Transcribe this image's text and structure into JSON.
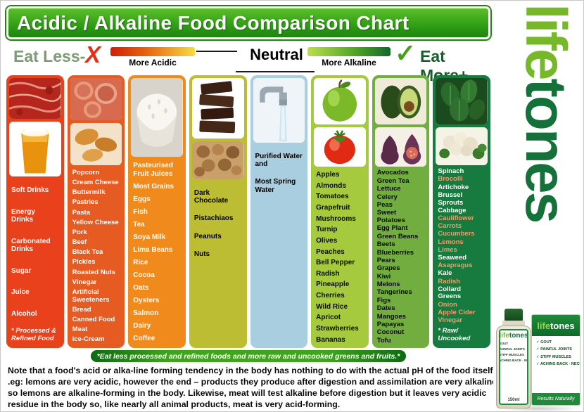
{
  "title": "Acidic / Alkaline Food Comparison Chart",
  "legend": {
    "eat_less": "Eat Less-",
    "x_mark": "X",
    "more_acidic": "More Acidic",
    "neutral": "Neutral",
    "more_alkaline": "More Alkaline",
    "check_mark": "✓",
    "eat_more": "Eat More+"
  },
  "colors": {
    "acid_gradient_start": "#d01e08",
    "acid_gradient_end": "#f5dc46",
    "alkaline_gradient_start": "#bade4e",
    "alkaline_gradient_end": "#11682a",
    "x_mark_red": "#e03018",
    "check_green": "#44a01c",
    "banner_green": "#2f9e15"
  },
  "columns": [
    {
      "id": "most-acidic",
      "bg": "#e8411c",
      "text_color": "#ffffff",
      "images": [
        "meat-image",
        "beer-image"
      ],
      "items": [
        "Soft Drinks",
        "Energy Drinks",
        "Carbonated Drinks",
        "Sugar",
        "Juice",
        "Alcohol"
      ],
      "footnote": "* Processed & Refined Food"
    },
    {
      "id": "very-acidic",
      "bg": "#e55b22",
      "text_color": "#ffffff",
      "images": [
        "deli-meat-image",
        "pastries-image"
      ],
      "items": [
        "Popcorn",
        "Cream Cheese",
        "Buttermilk",
        "Pastries",
        "Pasta",
        "Yellow Cheese",
        "Pork",
        "Beef",
        "Black Tea",
        "Pickles",
        "Roasted Nuts",
        "Vinegar",
        "Artificial Sweeteners",
        "Bread",
        "Canned Food",
        "Meat",
        "Ice-Cream"
      ]
    },
    {
      "id": "acidic",
      "bg": "#f08a1d",
      "text_color": "#ffffff",
      "images": [
        "rice-image"
      ],
      "items": [
        "Pasteurised Fruit Juices",
        "Most Grains",
        "Eggs",
        "Fish",
        "Tea",
        "Soya Milk",
        "Lima Beans",
        "Rice",
        "Cocoa",
        "Oats",
        "Oysters",
        "Salmon",
        "Dairy",
        "Coffee"
      ]
    },
    {
      "id": "mildly-acidic",
      "bg": "#bdbd34",
      "text_color": "#000000",
      "layout": "top",
      "images": [
        "chocolate-image",
        "nuts-image"
      ],
      "items": [
        "Dark Chocolate",
        "Pistachiaos",
        "Peanuts",
        "Nuts"
      ]
    },
    {
      "id": "neutral",
      "bg": "#a8cedf",
      "text_color": "#000000",
      "layout": "top",
      "images": [
        "water-image"
      ],
      "items": [
        "Purified Water and",
        "Most Spring Water"
      ]
    },
    {
      "id": "mildly-alkaline",
      "bg": "#a5ca3e",
      "text_color": "#0a0a0a",
      "images": [
        "apple-image",
        "tomato-image"
      ],
      "items": [
        "Apples",
        "Almonds",
        "Tomatoes",
        "Grapefruit",
        "Mushrooms",
        "Turnip",
        "Olives",
        "Peaches",
        "Bell Pepper",
        "Radish",
        "Pineapple",
        "Cherries",
        "Wild Rice",
        "Apricot",
        "Strawberries",
        "Bananas"
      ]
    },
    {
      "id": "alkaline",
      "bg": "#72ad3f",
      "text_color": "#0a0a0a",
      "images": [
        "avocado-image",
        "figs-image"
      ],
      "items": [
        "Avocados",
        "Green Tea",
        "Lettuce",
        "Celery",
        "Peas",
        "Sweet Potatoes",
        "Egg Plant",
        "Green Beans",
        "Beets",
        "Blueberries",
        "Pears",
        "Grapes",
        "Kiwi",
        "Melons",
        "Tangerines",
        "Figs",
        "Dates",
        "Mangoes",
        "Papayas",
        "Coconut",
        "Tofu"
      ]
    },
    {
      "id": "most-alkaline",
      "bg": "#177a3e",
      "text_color": "#ffffff",
      "images": [
        "spinach-image",
        "cauliflower-image"
      ],
      "items": [
        {
          "label": "Spinach",
          "color": "#ffffff"
        },
        {
          "label": "Brocolli",
          "color": "#f49a6a"
        },
        {
          "label": "Artichoke",
          "color": "#ffffff"
        },
        {
          "label": "Brussel Sprouts",
          "color": "#ffffff"
        },
        {
          "label": "Cabbage",
          "color": "#ffffff"
        },
        {
          "label": "Cauliflower",
          "color": "#f49a6a"
        },
        {
          "label": "Carrots",
          "color": "#f49a6a"
        },
        {
          "label": "Cucumbers",
          "color": "#f49a6a"
        },
        {
          "label": "Lemons",
          "color": "#f49a6a"
        },
        {
          "label": "Limes",
          "color": "#f49a6a"
        },
        {
          "label": "Seaweed",
          "color": "#ffffff"
        },
        {
          "label": "Asapragus",
          "color": "#f49a6a"
        },
        {
          "label": "Kale",
          "color": "#ffffff"
        },
        {
          "label": "Radish",
          "color": "#f49a6a"
        },
        {
          "label": "Collard Greens",
          "color": "#ffffff"
        },
        {
          "label": "Onion",
          "color": "#f49a6a"
        },
        {
          "label": "Apple Cider",
          "color": "#f49a6a"
        },
        {
          "label": "Vinegar",
          "color": "#f49a6a"
        }
      ],
      "footnote": "* Raw/ Uncooked"
    }
  ],
  "strip_note": "*Eat less processed and refined foods and more raw and uncooked greens and fruits.*",
  "bottom_note": "Note that a food's acid or alka-line forming tendency in the body has nothing to do with the actual pH of the food itself .eg: lemons are very acidic, however the end – products they produce after digestion and assimilation are very alkaline so lemons are alkaline-forming in the body. Likewise, meat will test alkaline before digestion but it leaves very acidic residue in the body so, like nearly all animal products, meat is very acid-forming.",
  "brand": {
    "life": "life",
    "tones": "tones",
    "light_green": "#76b82a",
    "dark_green": "#15713a",
    "product": {
      "benefits": [
        "GOUT",
        "PAINFUL JOINTS",
        "STIFF MUSCLES",
        "ACHING BACK · NECK"
      ],
      "results": "Results Naturally",
      "volume": "150ml"
    }
  }
}
